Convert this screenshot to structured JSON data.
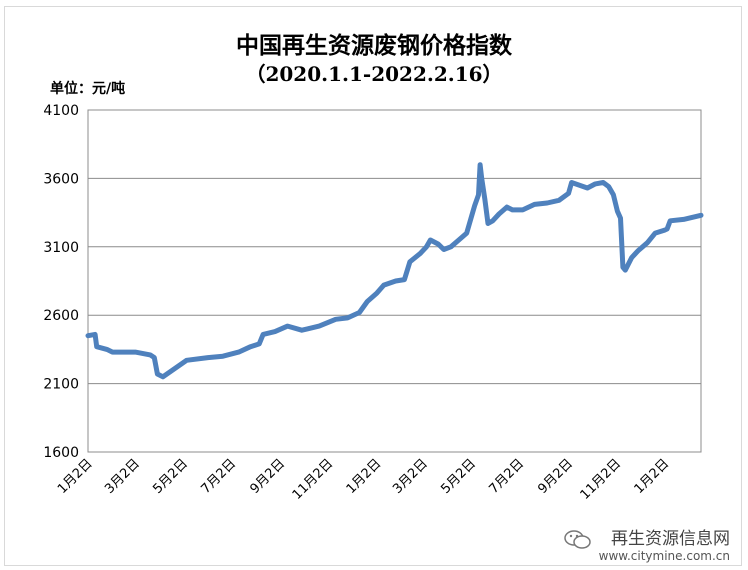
{
  "chart_data": {
    "type": "line",
    "title": "中国再生资源废钢价格指数",
    "subtitle": "（2020.1.1-2022.2.16）",
    "ylabel": "单位：元/吨",
    "xlabel": "",
    "ylim": [
      1600,
      4100
    ],
    "yticks": [
      1600,
      2100,
      2600,
      3100,
      3600,
      4100
    ],
    "xlim": [
      "2020-01-01",
      "2022-02-16"
    ],
    "x_tick_labels": [
      "1月2日",
      "3月2日",
      "5月2日",
      "7月2日",
      "9月2日",
      "11月2日",
      "1月2日",
      "3月2日",
      "5月2日",
      "7月2日",
      "9月2日",
      "11月2日",
      "1月2日"
    ],
    "x_tick_dates": [
      "2020-01-02",
      "2020-03-02",
      "2020-05-02",
      "2020-07-02",
      "2020-09-02",
      "2020-11-02",
      "2021-01-02",
      "2021-03-02",
      "2021-05-02",
      "2021-07-02",
      "2021-09-02",
      "2021-11-02",
      "2022-01-02"
    ],
    "grid": "horizontal",
    "series": [
      {
        "color": "#4F81BD",
        "points": [
          [
            "2020-01-01",
            2450
          ],
          [
            "2020-01-10",
            2460
          ],
          [
            "2020-01-12",
            2370
          ],
          [
            "2020-01-25",
            2350
          ],
          [
            "2020-02-01",
            2330
          ],
          [
            "2020-03-01",
            2330
          ],
          [
            "2020-03-20",
            2310
          ],
          [
            "2020-03-25",
            2290
          ],
          [
            "2020-03-29",
            2170
          ],
          [
            "2020-04-05",
            2150
          ],
          [
            "2020-04-15",
            2190
          ],
          [
            "2020-04-25",
            2230
          ],
          [
            "2020-05-05",
            2270
          ],
          [
            "2020-06-01",
            2290
          ],
          [
            "2020-06-20",
            2300
          ],
          [
            "2020-07-10",
            2330
          ],
          [
            "2020-07-25",
            2370
          ],
          [
            "2020-08-05",
            2390
          ],
          [
            "2020-08-10",
            2460
          ],
          [
            "2020-08-25",
            2480
          ],
          [
            "2020-09-10",
            2520
          ],
          [
            "2020-09-28",
            2490
          ],
          [
            "2020-10-05",
            2500
          ],
          [
            "2020-10-20",
            2520
          ],
          [
            "2020-11-10",
            2570
          ],
          [
            "2020-11-25",
            2580
          ],
          [
            "2020-12-10",
            2620
          ],
          [
            "2020-12-20",
            2700
          ],
          [
            "2021-01-01",
            2760
          ],
          [
            "2021-01-10",
            2820
          ],
          [
            "2021-01-25",
            2850
          ],
          [
            "2021-02-05",
            2860
          ],
          [
            "2021-02-12",
            2990
          ],
          [
            "2021-02-25",
            3050
          ],
          [
            "2021-03-05",
            3100
          ],
          [
            "2021-03-10",
            3150
          ],
          [
            "2021-03-20",
            3120
          ],
          [
            "2021-03-27",
            3080
          ],
          [
            "2021-04-05",
            3100
          ],
          [
            "2021-04-15",
            3150
          ],
          [
            "2021-04-25",
            3200
          ],
          [
            "2021-05-05",
            3400
          ],
          [
            "2021-05-10",
            3480
          ],
          [
            "2021-05-12",
            3700
          ],
          [
            "2021-05-14",
            3600
          ],
          [
            "2021-05-18",
            3450
          ],
          [
            "2021-05-22",
            3270
          ],
          [
            "2021-05-28",
            3290
          ],
          [
            "2021-06-05",
            3340
          ],
          [
            "2021-06-15",
            3390
          ],
          [
            "2021-06-22",
            3370
          ],
          [
            "2021-07-05",
            3370
          ],
          [
            "2021-07-20",
            3410
          ],
          [
            "2021-08-05",
            3420
          ],
          [
            "2021-08-20",
            3440
          ],
          [
            "2021-09-01",
            3490
          ],
          [
            "2021-09-05",
            3570
          ],
          [
            "2021-09-15",
            3550
          ],
          [
            "2021-09-25",
            3530
          ],
          [
            "2021-10-05",
            3560
          ],
          [
            "2021-10-15",
            3570
          ],
          [
            "2021-10-22",
            3540
          ],
          [
            "2021-10-28",
            3480
          ],
          [
            "2021-11-02",
            3360
          ],
          [
            "2021-11-06",
            3310
          ],
          [
            "2021-11-09",
            2950
          ],
          [
            "2021-11-12",
            2930
          ],
          [
            "2021-11-20",
            3020
          ],
          [
            "2021-11-28",
            3070
          ],
          [
            "2021-12-10",
            3130
          ],
          [
            "2021-12-20",
            3200
          ],
          [
            "2021-12-31",
            3220
          ],
          [
            "2022-01-04",
            3230
          ],
          [
            "2022-01-08",
            3290
          ],
          [
            "2022-01-25",
            3300
          ],
          [
            "2022-02-16",
            3330
          ]
        ]
      }
    ]
  },
  "watermark": {
    "name": "再生资源信息网",
    "url": "www.citymine.com.cn"
  }
}
